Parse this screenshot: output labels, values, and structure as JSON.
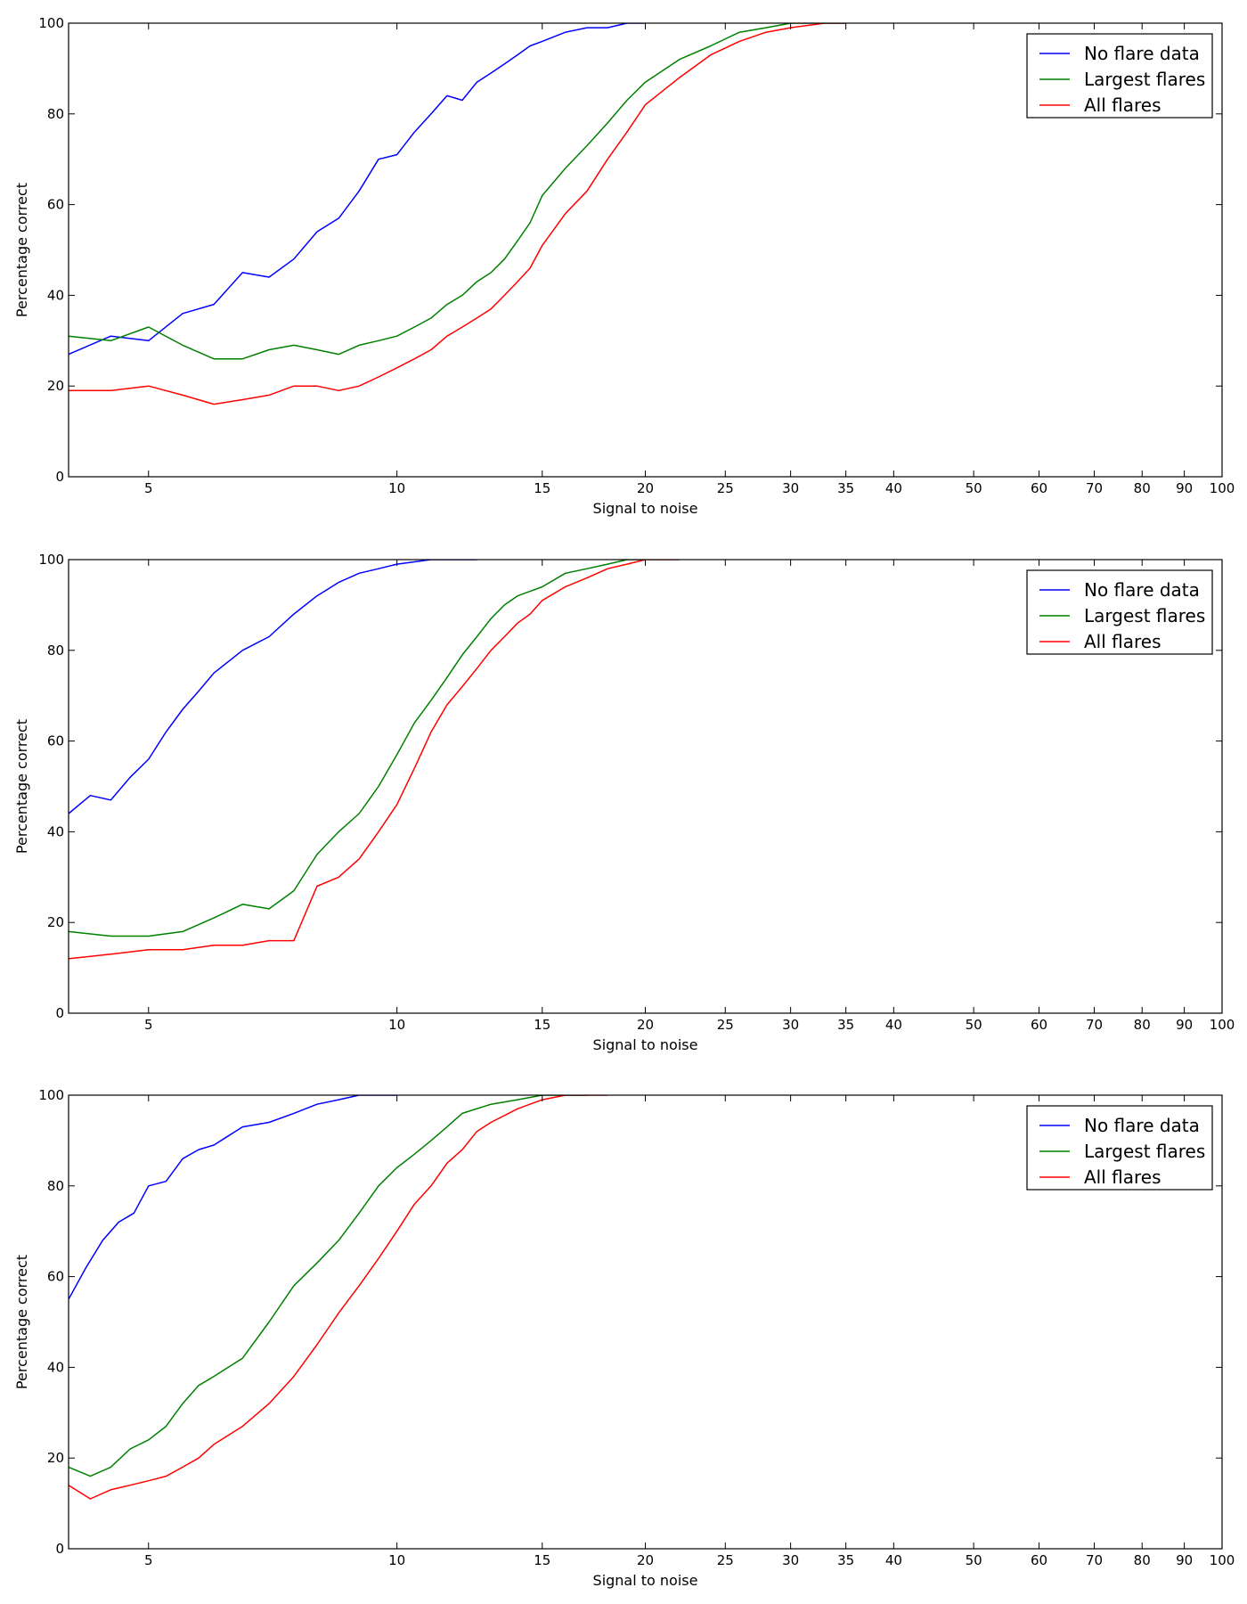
{
  "chart_data": [
    {
      "type": "line",
      "xscale": "log",
      "xlim": [
        4,
        100
      ],
      "ylim": [
        0,
        100
      ],
      "xticks": [
        5,
        10,
        15,
        20,
        25,
        30,
        35,
        40,
        50,
        60,
        70,
        80,
        90,
        100
      ],
      "yticks": [
        0,
        20,
        40,
        60,
        80,
        100
      ],
      "xlabel": "Signal to noise",
      "ylabel": "Percentage correct",
      "legend_position": "top-right",
      "grid": false,
      "series": [
        {
          "name": "No flare data",
          "color": "#0000ff",
          "x": [
            4,
            4.5,
            5,
            5.5,
            6,
            6.5,
            7,
            7.5,
            8,
            8.5,
            9,
            9.5,
            10,
            10.5,
            11,
            11.5,
            12,
            12.5,
            13,
            13.5,
            14,
            14.5,
            15,
            16,
            17,
            18,
            19,
            20
          ],
          "y": [
            27,
            31,
            30,
            36,
            38,
            45,
            44,
            48,
            54,
            57,
            63,
            70,
            71,
            76,
            80,
            84,
            83,
            87,
            89,
            91,
            93,
            95,
            96,
            98,
            99,
            99,
            100,
            100
          ]
        },
        {
          "name": "Largest flares",
          "color": "#008000",
          "x": [
            4,
            4.5,
            5,
            5.5,
            6,
            6.5,
            7,
            7.5,
            8,
            8.5,
            9,
            9.5,
            10,
            10.5,
            11,
            11.5,
            12,
            12.5,
            13,
            13.5,
            14,
            14.5,
            15,
            16,
            17,
            18,
            19,
            20,
            22,
            24,
            26,
            28,
            30,
            33,
            35
          ],
          "y": [
            31,
            30,
            33,
            29,
            26,
            26,
            28,
            29,
            28,
            27,
            29,
            30,
            31,
            33,
            35,
            38,
            40,
            43,
            45,
            48,
            52,
            56,
            62,
            68,
            73,
            78,
            83,
            87,
            92,
            95,
            98,
            99,
            100,
            100,
            100
          ]
        },
        {
          "name": "All flares",
          "color": "#ff0000",
          "x": [
            4,
            4.5,
            5,
            5.5,
            6,
            6.5,
            7,
            7.5,
            8,
            8.5,
            9,
            9.5,
            10,
            10.5,
            11,
            11.5,
            12,
            12.5,
            13,
            13.5,
            14,
            14.5,
            15,
            16,
            17,
            18,
            19,
            20,
            22,
            24,
            26,
            28,
            30,
            33,
            35
          ],
          "y": [
            19,
            19,
            20,
            18,
            16,
            17,
            18,
            20,
            20,
            19,
            20,
            22,
            24,
            26,
            28,
            31,
            33,
            35,
            37,
            40,
            43,
            46,
            51,
            58,
            63,
            70,
            76,
            82,
            88,
            93,
            96,
            98,
            99,
            100,
            100
          ]
        }
      ]
    },
    {
      "type": "line",
      "xscale": "log",
      "xlim": [
        4,
        100
      ],
      "ylim": [
        0,
        100
      ],
      "xticks": [
        5,
        10,
        15,
        20,
        25,
        30,
        35,
        40,
        50,
        60,
        70,
        80,
        90,
        100
      ],
      "yticks": [
        0,
        20,
        40,
        60,
        80,
        100
      ],
      "xlabel": "Signal to noise",
      "ylabel": "Percentage correct",
      "legend_position": "top-right",
      "grid": false,
      "series": [
        {
          "name": "No flare data",
          "color": "#0000ff",
          "x": [
            4,
            4.25,
            4.5,
            4.75,
            5,
            5.25,
            5.5,
            5.75,
            6,
            6.5,
            7,
            7.5,
            8,
            8.5,
            9,
            9.5,
            10,
            11,
            12,
            12.5
          ],
          "y": [
            44,
            48,
            47,
            52,
            56,
            62,
            67,
            71,
            75,
            80,
            83,
            88,
            92,
            95,
            97,
            98,
            99,
            100,
            100,
            100
          ]
        },
        {
          "name": "Largest flares",
          "color": "#008000",
          "x": [
            4,
            4.5,
            5,
            5.5,
            6,
            6.5,
            7,
            7.5,
            8,
            8.5,
            9,
            9.5,
            10,
            10.5,
            11,
            11.5,
            12,
            12.5,
            13,
            13.5,
            14,
            14.5,
            15,
            16,
            17,
            18,
            19,
            20
          ],
          "y": [
            18,
            17,
            17,
            18,
            21,
            24,
            23,
            27,
            35,
            40,
            44,
            50,
            57,
            64,
            69,
            74,
            79,
            83,
            87,
            90,
            92,
            93,
            94,
            97,
            98,
            99,
            100,
            100
          ]
        },
        {
          "name": "All flares",
          "color": "#ff0000",
          "x": [
            4,
            4.5,
            5,
            5.5,
            6,
            6.5,
            7,
            7.5,
            8,
            8.5,
            9,
            9.5,
            10,
            10.5,
            11,
            11.5,
            12,
            12.5,
            13,
            13.5,
            14,
            14.5,
            15,
            16,
            17,
            18,
            19,
            20,
            21,
            22
          ],
          "y": [
            12,
            13,
            14,
            14,
            15,
            15,
            16,
            16,
            28,
            30,
            34,
            40,
            46,
            54,
            62,
            68,
            72,
            76,
            80,
            83,
            86,
            88,
            91,
            94,
            96,
            98,
            99,
            100,
            100,
            100
          ]
        }
      ]
    },
    {
      "type": "line",
      "xscale": "log",
      "xlim": [
        4,
        100
      ],
      "ylim": [
        0,
        100
      ],
      "xticks": [
        5,
        10,
        15,
        20,
        25,
        30,
        35,
        40,
        50,
        60,
        70,
        80,
        90,
        100
      ],
      "yticks": [
        0,
        20,
        40,
        60,
        80,
        100
      ],
      "xlabel": "Signal to noise",
      "ylabel": "Percentage correct",
      "legend_position": "top-right",
      "grid": false,
      "series": [
        {
          "name": "No flare data",
          "color": "#0000ff",
          "x": [
            4,
            4.2,
            4.4,
            4.6,
            4.8,
            5,
            5.25,
            5.5,
            5.75,
            6,
            6.5,
            7,
            7.5,
            8,
            8.5,
            9,
            9.5,
            10
          ],
          "y": [
            55,
            62,
            68,
            72,
            74,
            80,
            81,
            86,
            88,
            89,
            93,
            94,
            96,
            98,
            99,
            100,
            100,
            100
          ]
        },
        {
          "name": "Largest flares",
          "color": "#008000",
          "x": [
            4,
            4.25,
            4.5,
            4.75,
            5,
            5.25,
            5.5,
            5.75,
            6,
            6.5,
            7,
            7.5,
            8,
            8.5,
            9,
            9.5,
            10,
            10.5,
            11,
            11.5,
            12,
            13,
            14,
            15,
            16,
            17
          ],
          "y": [
            18,
            16,
            18,
            22,
            24,
            27,
            32,
            36,
            38,
            42,
            50,
            58,
            63,
            68,
            74,
            80,
            84,
            87,
            90,
            93,
            96,
            98,
            99,
            100,
            100,
            100
          ]
        },
        {
          "name": "All flares",
          "color": "#ff0000",
          "x": [
            4,
            4.25,
            4.5,
            4.75,
            5,
            5.25,
            5.5,
            5.75,
            6,
            6.5,
            7,
            7.5,
            8,
            8.5,
            9,
            9.5,
            10,
            10.5,
            11,
            11.5,
            12,
            12.5,
            13,
            14,
            15,
            16,
            17,
            18
          ],
          "y": [
            14,
            11,
            13,
            14,
            15,
            16,
            18,
            20,
            23,
            27,
            32,
            38,
            45,
            52,
            58,
            64,
            70,
            76,
            80,
            85,
            88,
            92,
            94,
            97,
            99,
            100,
            100,
            100
          ]
        }
      ]
    }
  ]
}
